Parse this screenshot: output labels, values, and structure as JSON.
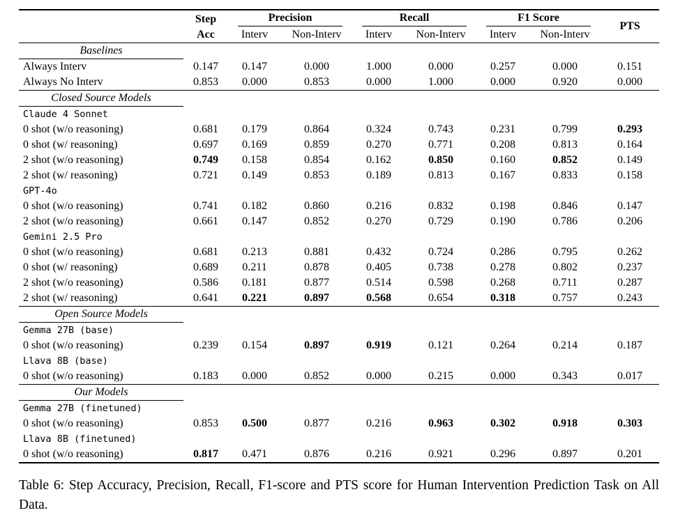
{
  "header": {
    "col_step": "Step",
    "col_acc": "Acc",
    "col_precision": "Precision",
    "col_recall": "Recall",
    "col_f1": "F1 Score",
    "col_pts": "PTS",
    "sub_interv": "Interv",
    "sub_non_interv": "Non-Interv"
  },
  "rows": [
    {
      "type": "section",
      "label": "Baselines"
    },
    {
      "type": "data",
      "label": "Always Interv",
      "values": [
        "0.147",
        "0.147",
        "0.000",
        "1.000",
        "0.000",
        "0.257",
        "0.000",
        "0.151"
      ],
      "bold": []
    },
    {
      "type": "data",
      "label": "Always No Interv",
      "values": [
        "0.853",
        "0.000",
        "0.853",
        "0.000",
        "1.000",
        "0.000",
        "0.920",
        "0.000"
      ],
      "bold": []
    },
    {
      "type": "section",
      "label": "Closed Source Models"
    },
    {
      "type": "model",
      "label": "Claude 4 Sonnet"
    },
    {
      "type": "data",
      "label": "0 shot (w/o reasoning)",
      "values": [
        "0.681",
        "0.179",
        "0.864",
        "0.324",
        "0.743",
        "0.231",
        "0.799",
        "0.293"
      ],
      "bold": [
        7
      ]
    },
    {
      "type": "data",
      "label": "0 shot (w/ reasoning)",
      "values": [
        "0.697",
        "0.169",
        "0.859",
        "0.270",
        "0.771",
        "0.208",
        "0.813",
        "0.164"
      ],
      "bold": []
    },
    {
      "type": "data",
      "label": "2 shot (w/o reasoning)",
      "values": [
        "0.749",
        "0.158",
        "0.854",
        "0.162",
        "0.850",
        "0.160",
        "0.852",
        "0.149"
      ],
      "bold": [
        0,
        4,
        6
      ]
    },
    {
      "type": "data",
      "label": "2 shot (w/ reasoning)",
      "values": [
        "0.721",
        "0.149",
        "0.853",
        "0.189",
        "0.813",
        "0.167",
        "0.833",
        "0.158"
      ],
      "bold": []
    },
    {
      "type": "model",
      "label": "GPT-4o"
    },
    {
      "type": "data",
      "label": "0 shot (w/o reasoning)",
      "values": [
        "0.741",
        "0.182",
        "0.860",
        "0.216",
        "0.832",
        "0.198",
        "0.846",
        "0.147"
      ],
      "bold": []
    },
    {
      "type": "data",
      "label": "2 shot (w/o reasoning)",
      "values": [
        "0.661",
        "0.147",
        "0.852",
        "0.270",
        "0.729",
        "0.190",
        "0.786",
        "0.206"
      ],
      "bold": []
    },
    {
      "type": "model",
      "label": "Gemini 2.5 Pro"
    },
    {
      "type": "data",
      "label": "0 shot (w/o reasoning)",
      "values": [
        "0.681",
        "0.213",
        "0.881",
        "0.432",
        "0.724",
        "0.286",
        "0.795",
        "0.262"
      ],
      "bold": []
    },
    {
      "type": "data",
      "label": "0 shot (w/ reasoning)",
      "values": [
        "0.689",
        "0.211",
        "0.878",
        "0.405",
        "0.738",
        "0.278",
        "0.802",
        "0.237"
      ],
      "bold": []
    },
    {
      "type": "data",
      "label": "2 shot (w/o reasoning)",
      "values": [
        "0.586",
        "0.181",
        "0.877",
        "0.514",
        "0.598",
        "0.268",
        "0.711",
        "0.287"
      ],
      "bold": []
    },
    {
      "type": "data",
      "label": "2 shot (w/ reasoning)",
      "values": [
        "0.641",
        "0.221",
        "0.897",
        "0.568",
        "0.654",
        "0.318",
        "0.757",
        "0.243"
      ],
      "bold": [
        1,
        2,
        3,
        5
      ]
    },
    {
      "type": "section",
      "label": "Open Source Models"
    },
    {
      "type": "model",
      "label": "Gemma 27B (base)"
    },
    {
      "type": "data",
      "label": "0 shot (w/o reasoning)",
      "values": [
        "0.239",
        "0.154",
        "0.897",
        "0.919",
        "0.121",
        "0.264",
        "0.214",
        "0.187"
      ],
      "bold": [
        2,
        3
      ]
    },
    {
      "type": "model",
      "label": "Llava 8B (base)"
    },
    {
      "type": "data",
      "label": "0 shot (w/o reasoning)",
      "values": [
        "0.183",
        "0.000",
        "0.852",
        "0.000",
        "0.215",
        "0.000",
        "0.343",
        "0.017"
      ],
      "bold": []
    },
    {
      "type": "section",
      "label": "Our Models"
    },
    {
      "type": "model",
      "label": "Gemma 27B (finetuned)"
    },
    {
      "type": "data",
      "label": "0 shot (w/o reasoning)",
      "values": [
        "0.853",
        "0.500",
        "0.877",
        "0.216",
        "0.963",
        "0.302",
        "0.918",
        "0.303"
      ],
      "bold": [
        1,
        4,
        5,
        6,
        7
      ]
    },
    {
      "type": "model",
      "label": "Llava 8B (finetuned)"
    },
    {
      "type": "data",
      "label": "0 shot (w/o reasoning)",
      "values": [
        "0.817",
        "0.471",
        "0.876",
        "0.216",
        "0.921",
        "0.296",
        "0.897",
        "0.201"
      ],
      "bold": [
        0
      ]
    }
  ],
  "caption": "Table 6: Step Accuracy, Precision, Recall, F1-score and PTS score for Human Intervention Prediction Task on All Data."
}
